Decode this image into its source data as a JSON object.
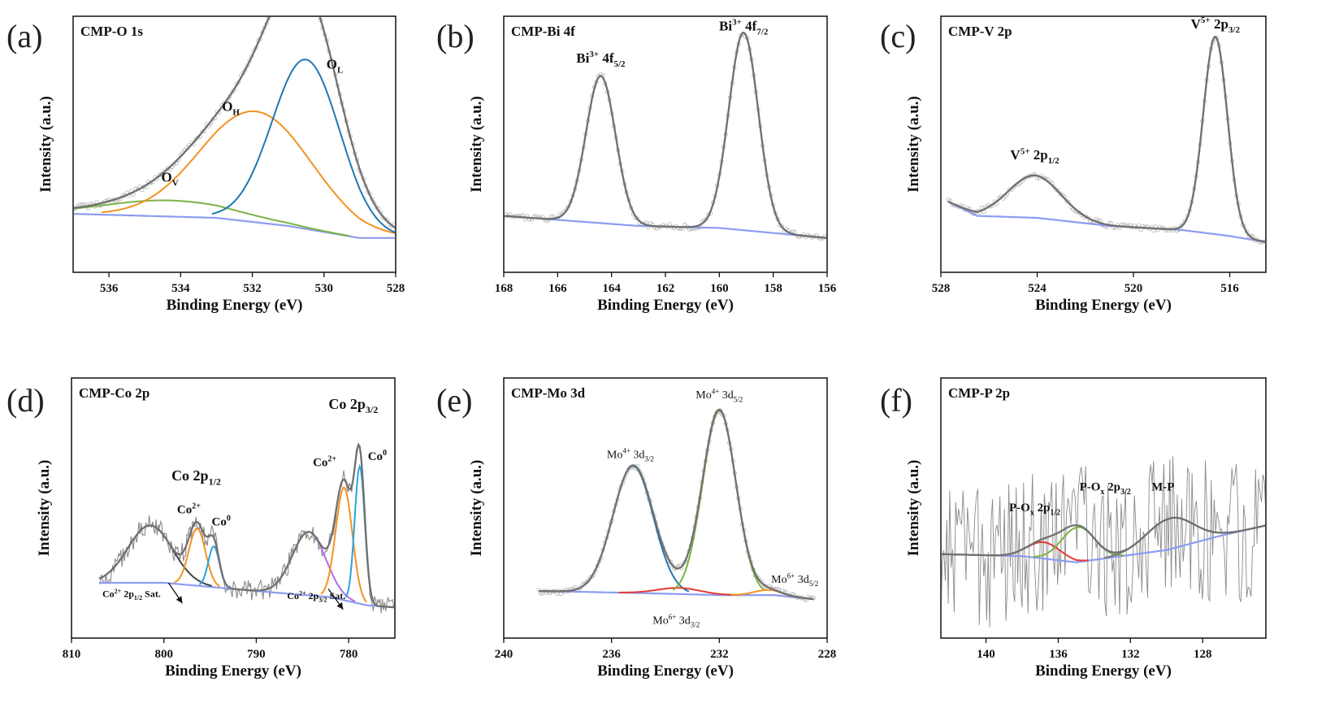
{
  "chart_data": [
    {
      "type": "line",
      "panel": "(a)",
      "title": "CMP-O 1s",
      "xlabel": "Binding Energy (eV)",
      "ylabel": "Intensity (a.u.)",
      "xlim": [
        537,
        528
      ],
      "x_ticks": [
        536,
        534,
        532,
        530,
        528
      ],
      "ylim": [
        -0.15,
        1.12
      ],
      "baseline": [
        [
          537,
          0.14
        ],
        [
          533,
          0.12
        ],
        [
          531,
          0.08
        ],
        [
          529,
          0.02
        ],
        [
          528,
          0.02
        ]
      ],
      "peaks": [
        {
          "name": "O_V",
          "center": 534.3,
          "height": 0.08,
          "width": 1.8,
          "color": "#7cb342"
        },
        {
          "name": "O_H",
          "center": 531.9,
          "height": 0.55,
          "width": 1.55,
          "color": "#f39221"
        },
        {
          "name": "O_L",
          "center": 530.5,
          "height": 0.84,
          "width": 0.95,
          "color": "#1f77b4"
        }
      ],
      "annotations": [
        {
          "base": "O",
          "sub": "V",
          "x": 534.3,
          "y": 0.3
        },
        {
          "base": "O",
          "sub": "H",
          "x": 532.6,
          "y": 0.65
        },
        {
          "base": "O",
          "sub": "L",
          "x": 529.7,
          "y": 0.86
        }
      ]
    },
    {
      "type": "line",
      "panel": "(b)",
      "title": "CMP-Bi 4f",
      "xlabel": "Binding Energy (eV)",
      "ylabel": "Intensity (a.u.)",
      "xlim": [
        168,
        156
      ],
      "x_ticks": [
        168,
        166,
        164,
        162,
        160,
        158,
        156
      ],
      "ylim": [
        -0.15,
        1.12
      ],
      "baseline": [
        [
          168,
          0.13
        ],
        [
          163,
          0.08
        ],
        [
          160,
          0.07
        ],
        [
          156,
          0.02
        ]
      ],
      "peaks": [
        {
          "name": "Bi3+ 4f5/2",
          "center": 164.4,
          "height": 0.73,
          "width": 0.55,
          "color": "#f39221"
        },
        {
          "name": "Bi3+ 4f7/2",
          "center": 159.1,
          "height": 0.98,
          "width": 0.55,
          "color": "#7cb342"
        }
      ],
      "annotations": [
        {
          "base": "Bi",
          "sup": "3+",
          "mid": " 4f",
          "sub": "5/2",
          "x": 164.4,
          "y": 0.89
        },
        {
          "base": "Bi",
          "sup": "3+",
          "mid": " 4f",
          "sub": "7/2",
          "x": 159.1,
          "y": 1.05
        }
      ]
    },
    {
      "type": "line",
      "panel": "(c)",
      "title": "CMP-V 2p",
      "xlabel": "Binding Energy (eV)",
      "ylabel": "Intensity (a.u.)",
      "xlim": [
        528,
        514.5
      ],
      "x_ticks": [
        528,
        524,
        520,
        516
      ],
      "ylim": [
        -0.15,
        1.12
      ],
      "baseline": [
        [
          527.7,
          0.2
        ],
        [
          526.5,
          0.13
        ],
        [
          524,
          0.12
        ],
        [
          521,
          0.08
        ],
        [
          518,
          0.06
        ],
        [
          516,
          0.03
        ],
        [
          514.5,
          0.0
        ]
      ],
      "peaks": [
        {
          "name": "V5+ 2p1/2",
          "center": 524.1,
          "height": 0.21,
          "width": 1.1,
          "color": "#f39221"
        },
        {
          "name": "V5+ 2p3/2",
          "center": 516.6,
          "height": 0.98,
          "width": 0.5,
          "color": "#7cb342"
        }
      ],
      "annotations": [
        {
          "base": "V",
          "sup": "5+",
          "mid": " 2p",
          "sub": "1/2",
          "x": 524.1,
          "y": 0.41
        },
        {
          "base": "V",
          "sup": "5+",
          "mid": " 2p",
          "sub": "3/2",
          "x": 516.6,
          "y": 1.06
        }
      ]
    },
    {
      "type": "line",
      "panel": "(d)",
      "title": "CMP-Co 2p",
      "xlabel": "Binding Energy (eV)",
      "ylabel": "Intensity (a.u.)",
      "xlim": [
        810,
        775
      ],
      "x_ticks": [
        810,
        800,
        790,
        780
      ],
      "ylim": [
        -0.15,
        1.12
      ],
      "baseline": [
        [
          807,
          0.12
        ],
        [
          800,
          0.12
        ],
        [
          790,
          0.08
        ],
        [
          782,
          0.05
        ],
        [
          778,
          0.01
        ],
        [
          775,
          0.0
        ]
      ],
      "peaks": [
        {
          "name": "Co2+ 2p1/2 Sat.",
          "center": 801.5,
          "height": 0.28,
          "width": 2.4,
          "color": "#444444"
        },
        {
          "name": "Co2+",
          "center": 796.4,
          "height": 0.28,
          "width": 0.9,
          "color": "#f39221"
        },
        {
          "name": "Co0",
          "center": 794.6,
          "height": 0.2,
          "width": 0.6,
          "color": "#29a3e0"
        },
        {
          "name": "Co2+ 2p3/2 Sat.",
          "center": 784.3,
          "height": 0.31,
          "width": 1.8,
          "color": "#b06bf0"
        },
        {
          "name": "Co2+",
          "center": 780.5,
          "height": 0.55,
          "width": 0.9,
          "color": "#f39221"
        },
        {
          "name": "Co0",
          "center": 778.8,
          "height": 0.67,
          "width": 0.55,
          "color": "#29a3e0"
        }
      ],
      "annotations": [
        {
          "base": "Co 2p",
          "sub": "1/2",
          "x": 796.5,
          "y": 0.62,
          "size": 18,
          "bold": true
        },
        {
          "base": "Co 2p",
          "sub": "3/2",
          "x": 779.5,
          "y": 0.97,
          "size": 18,
          "bold": true
        },
        {
          "base": "Co",
          "sup": "2+",
          "x": 797.3,
          "y": 0.46,
          "size": 15,
          "bold": true
        },
        {
          "base": "Co",
          "sup": "0",
          "x": 793.8,
          "y": 0.4,
          "size": 15,
          "bold": true
        },
        {
          "base": "Co",
          "sup": "2+",
          "x": 782.6,
          "y": 0.69,
          "size": 15,
          "bold": true
        },
        {
          "base": "Co",
          "sup": "0",
          "x": 776.9,
          "y": 0.72,
          "size": 15,
          "bold": true
        },
        {
          "base": "Co",
          "sup": "2+",
          "mid": " 2p",
          "sub": "1/2",
          "end": " Sat.",
          "x": 803.5,
          "y": 0.05,
          "size": 12,
          "bold": true
        },
        {
          "base": "Co",
          "sup": "2+",
          "mid": " 2p",
          "sub": "3/2",
          "end": " Sat.",
          "x": 783.5,
          "y": 0.04,
          "size": 12,
          "bold": true
        }
      ],
      "arrows": [
        {
          "from": [
            799.5,
            0.12
          ],
          "to": [
            798.0,
            0.02
          ]
        },
        {
          "from": [
            782.2,
            0.09
          ],
          "to": [
            780.6,
            -0.01
          ]
        }
      ]
    },
    {
      "type": "line",
      "panel": "(e)",
      "title": "CMP-Mo 3d",
      "xlabel": "Binding Energy (eV)",
      "ylabel": "Intensity (a.u.)",
      "xlim": [
        240,
        228
      ],
      "x_ticks": [
        240,
        236,
        232,
        228
      ],
      "ylim": [
        -0.15,
        1.12
      ],
      "baseline": [
        [
          238.7,
          0.08
        ],
        [
          235,
          0.07
        ],
        [
          232,
          0.06
        ],
        [
          230,
          0.06
        ],
        [
          228.5,
          0.04
        ]
      ],
      "peaks": [
        {
          "name": "Mo4+ 3d3/2",
          "center": 235.2,
          "height": 0.62,
          "width": 0.75,
          "color": "#1f77b4"
        },
        {
          "name": "Mo6+ 3d3/2",
          "center": 233.5,
          "height": 0.03,
          "width": 0.8,
          "color": "#e53935"
        },
        {
          "name": "Mo4+ 3d5/2",
          "center": 232.0,
          "height": 0.9,
          "width": 0.62,
          "color": "#7cb342"
        },
        {
          "name": "Mo6+ 3d5/2",
          "center": 230.2,
          "height": 0.025,
          "width": 0.5,
          "color": "#f39221"
        }
      ],
      "annotations": [
        {
          "base": "Mo",
          "sup": "4+",
          "mid": " 3d",
          "sub": "3/2",
          "x": 235.3,
          "y": 0.73,
          "size": 14
        },
        {
          "base": "Mo",
          "sup": "4+",
          "mid": " 3d",
          "sub": "5/2",
          "x": 232.0,
          "y": 1.02,
          "size": 14
        },
        {
          "base": "Mo",
          "sup": "6+",
          "mid": " 3d",
          "sub": "3/2",
          "x": 233.6,
          "y": -0.08,
          "size": 14
        },
        {
          "base": "Mo",
          "sup": "6+",
          "mid": " 3d",
          "sub": "5/2",
          "x": 229.2,
          "y": 0.12,
          "size": 14
        }
      ]
    },
    {
      "type": "line",
      "panel": "(f)",
      "title": "CMP-P 2p",
      "xlabel": "Binding Energy (eV)",
      "ylabel": "Intensity (a.u.)",
      "xlim": [
        142.5,
        124.5
      ],
      "x_ticks": [
        140,
        136,
        132,
        128
      ],
      "ylim": [
        -0.15,
        1.12
      ],
      "baseline": [
        [
          142.5,
          0.26
        ],
        [
          138,
          0.25
        ],
        [
          135,
          0.22
        ],
        [
          130,
          0.28
        ],
        [
          127,
          0.35
        ],
        [
          124.5,
          0.4
        ]
      ],
      "peaks": [
        {
          "name": "P-Ox 2p1/2",
          "center": 136.8,
          "height": 0.08,
          "width": 0.9,
          "color": "#e53935"
        },
        {
          "name": "P-Ox 2p3/2",
          "center": 134.9,
          "height": 0.17,
          "width": 0.9,
          "color": "#7cb342"
        },
        {
          "name": "M-P",
          "center": 129.8,
          "height": 0.15,
          "width": 1.3,
          "color": "#777777"
        }
      ],
      "annotations": [
        {
          "base": "P-O",
          "sub": "x",
          "mid": " 2p",
          "sub2": "1/2",
          "x": 137.3,
          "y": 0.47,
          "size": 15,
          "bold": true
        },
        {
          "base": "P-O",
          "sub": "x",
          "mid": " 2p",
          "sub2": "3/2",
          "x": 133.4,
          "y": 0.57,
          "size": 15,
          "bold": true
        },
        {
          "base": "M-P",
          "x": 130.2,
          "y": 0.57,
          "size": 15,
          "bold": true
        }
      ]
    }
  ]
}
